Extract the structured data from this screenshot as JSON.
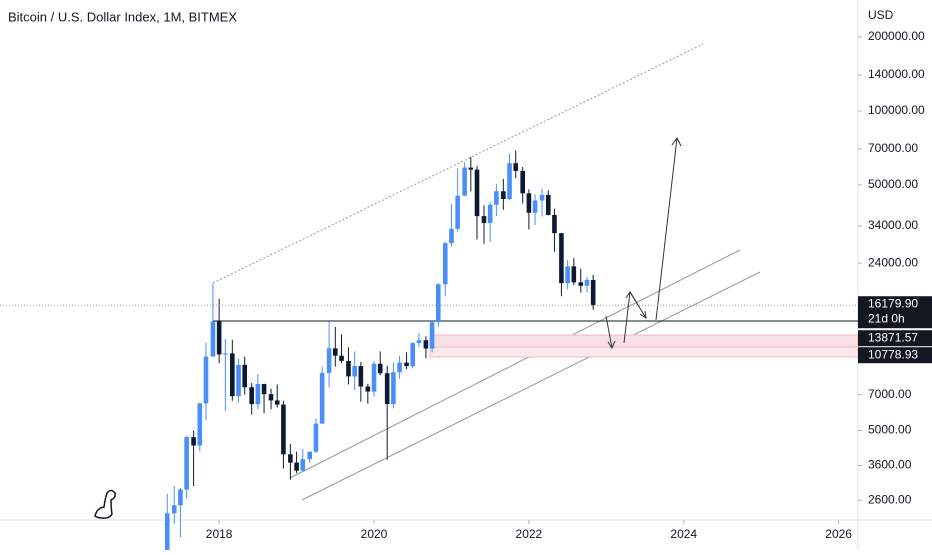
{
  "chart_data": {
    "type": "candlestick",
    "title": "Bitcoin / U.S. Dollar Index, 1M, BITMEX",
    "currency": "USD",
    "log_scale": true,
    "up_color": "#4a8ff7",
    "down_color": "#0e1a33",
    "x": [
      2017.33,
      2017.42,
      2017.5,
      2017.58,
      2017.67,
      2017.75,
      2017.83,
      2017.92,
      2018.0,
      2018.08,
      2018.17,
      2018.25,
      2018.33,
      2018.42,
      2018.5,
      2018.58,
      2018.67,
      2018.75,
      2018.83,
      2018.92,
      2019.0,
      2019.08,
      2019.17,
      2019.25,
      2019.33,
      2019.42,
      2019.5,
      2019.58,
      2019.67,
      2019.75,
      2019.83,
      2019.92,
      2020.0,
      2020.08,
      2020.17,
      2020.25,
      2020.33,
      2020.42,
      2020.5,
      2020.58,
      2020.67,
      2020.75,
      2020.83,
      2020.92,
      2021.0,
      2021.08,
      2021.17,
      2021.25,
      2021.33,
      2021.42,
      2021.5,
      2021.58,
      2021.67,
      2021.75,
      2021.83,
      2021.92,
      2022.0,
      2022.08,
      2022.17,
      2022.25,
      2022.33,
      2022.42,
      2022.5,
      2022.58,
      2022.67,
      2022.75,
      2022.83
    ],
    "open": [
      1350,
      2300,
      2480,
      2875,
      4700,
      4340,
      6450,
      10000,
      13900,
      10200,
      10300,
      6900,
      9250,
      7500,
      6400,
      7730,
      7030,
      6630,
      6370,
      4000,
      3700,
      3430,
      3820,
      4100,
      5330,
      8580,
      10800,
      10080,
      9600,
      8300,
      9150,
      7550,
      7200,
      9350,
      8550,
      6410,
      8630,
      9450,
      9140,
      11350,
      11650,
      10780,
      13800,
      19700,
      28950,
      33100,
      45200,
      58800,
      57700,
      37300,
      35000,
      41500,
      47100,
      43800,
      61300,
      57000,
      46200,
      38500,
      43200,
      45500,
      37700,
      31800,
      19900,
      23300,
      20050,
      19420,
      20500
    ],
    "high": [
      2760,
      2980,
      2920,
      4750,
      5000,
      6480,
      11400,
      19800,
      17200,
      11800,
      11700,
      9800,
      10000,
      7800,
      8500,
      7750,
      7400,
      7700,
      6600,
      4400,
      4100,
      4200,
      4100,
      5600,
      9100,
      13880,
      13200,
      12300,
      10900,
      10500,
      9500,
      7750,
      9580,
      10500,
      9180,
      9470,
      10080,
      10400,
      11450,
      12480,
      12100,
      14100,
      19900,
      29300,
      41950,
      58350,
      61800,
      64900,
      59600,
      41300,
      42400,
      50500,
      52900,
      67000,
      69000,
      59100,
      47900,
      45800,
      48200,
      47500,
      40000,
      31900,
      24700,
      25200,
      22800,
      21100,
      21500
    ],
    "low": [
      1350,
      2080,
      1840,
      2650,
      2970,
      4110,
      5500,
      10000,
      9400,
      6000,
      6600,
      6500,
      7000,
      5800,
      6100,
      5880,
      6100,
      6200,
      3500,
      3150,
      3350,
      3400,
      3700,
      4050,
      5330,
      7500,
      9100,
      9400,
      7700,
      7300,
      6550,
      6430,
      6860,
      8400,
      3800,
      6150,
      8100,
      8900,
      8950,
      10950,
      9850,
      10400,
      13200,
      17600,
      28100,
      32300,
      45000,
      47000,
      30000,
      28800,
      29300,
      37300,
      39600,
      43300,
      53300,
      42000,
      32900,
      34300,
      37200,
      37600,
      26700,
      17600,
      18800,
      19500,
      18200,
      18200,
      15500
    ],
    "close": [
      2300,
      2480,
      2875,
      4700,
      4340,
      6450,
      10000,
      13900,
      10200,
      10300,
      6900,
      9250,
      7500,
      6400,
      7730,
      7030,
      6630,
      6370,
      4000,
      3700,
      3430,
      3820,
      4100,
      5330,
      8580,
      10800,
      10080,
      9600,
      8300,
      9150,
      7550,
      7200,
      9350,
      8550,
      6410,
      8630,
      9450,
      9140,
      11350,
      11650,
      10780,
      13800,
      19700,
      28950,
      33100,
      45200,
      58800,
      57700,
      37300,
      35000,
      41500,
      47100,
      43800,
      61300,
      57000,
      46200,
      38500,
      43200,
      45500,
      37700,
      31800,
      19900,
      23300,
      20050,
      19420,
      20500,
      16180
    ],
    "xlim": [
      2015.17,
      2026.25
    ],
    "xticks": [
      2018,
      2020,
      2022,
      2024,
      2026
    ],
    "ylim": [
      2160,
      283000
    ],
    "yticks": [
      {
        "value": 2600,
        "label": "2600.00"
      },
      {
        "value": 3600,
        "label": "3600.00"
      },
      {
        "value": 5000,
        "label": "5000.00"
      },
      {
        "value": 7000,
        "label": "7000.00"
      },
      {
        "value": 24000,
        "label": "24000.00"
      },
      {
        "value": 34000,
        "label": "34000.00"
      },
      {
        "value": 50000,
        "label": "50000.00"
      },
      {
        "value": 70000,
        "label": "70000.00"
      },
      {
        "value": 100000,
        "label": "100000.00"
      },
      {
        "value": 140000,
        "label": "140000.00"
      },
      {
        "value": 200000,
        "label": "200000.00"
      }
    ],
    "last_price": {
      "value": 16179.9,
      "label": "16179.90",
      "countdown": "21d 0h"
    },
    "price_labels": [
      {
        "value": 13871.57,
        "label": "13871.57"
      },
      {
        "value": 10778.93,
        "label": "10778.93"
      }
    ]
  }
}
